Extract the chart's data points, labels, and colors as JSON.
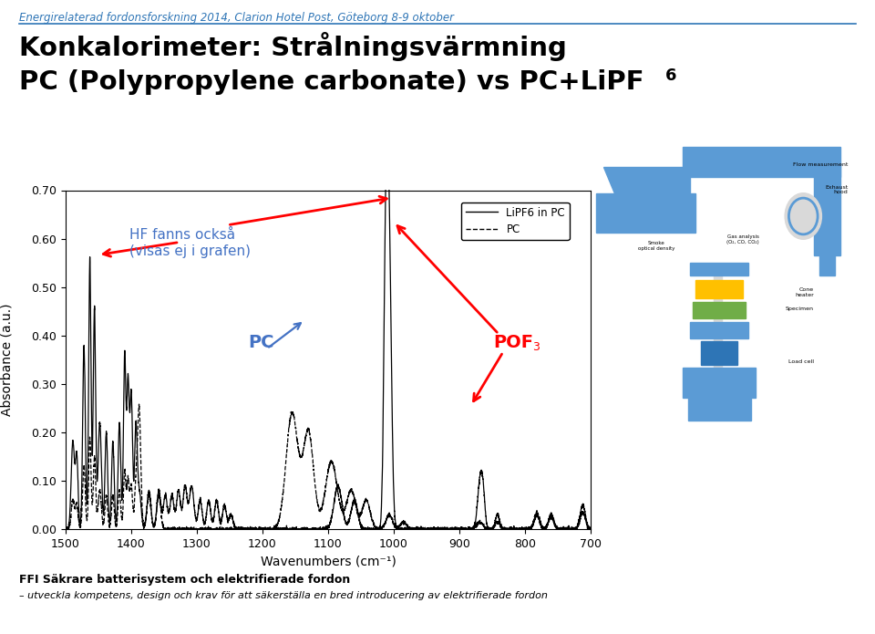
{
  "title_line1": "Konkalorimeter: Strålningsvärmning",
  "title_line2": "PC (Polypropylene carbonate) vs PC+LiPF",
  "title_line2_sub": "6",
  "header": "Energirelaterad fordonsforskning 2014, Clarion Hotel Post, Göteborg 8-9 oktober",
  "footer_bold": "FFI Säkrare batterisystem och elektrifierade fordon",
  "footer_italic": "– utveckla kompetens, design och krav för att säkerställa en bred introducering av elektrifierade fordon",
  "xlabel": "Wavenumbers (cm⁻¹)",
  "ylabel": "Absorbance (a.u.)",
  "xlim": [
    1500,
    700
  ],
  "ylim": [
    0.0,
    0.7
  ],
  "yticks": [
    0.0,
    0.1,
    0.2,
    0.3,
    0.4,
    0.5,
    0.6,
    0.7
  ],
  "xticks": [
    1500,
    1400,
    1300,
    1200,
    1100,
    1000,
    900,
    800,
    700
  ],
  "legend_solid": "LiPF6 in PC",
  "legend_dashed": "PC",
  "bg_color": "#ffffff",
  "header_color": "#2E75B6",
  "title_color": "#000000",
  "arrow_color_red": "#FF0000",
  "arrow_color_blue": "#4472C4",
  "annot_hf_color": "#4472C4",
  "annot_pc_color": "#4472C4",
  "annot_pof_color": "#FF0000"
}
